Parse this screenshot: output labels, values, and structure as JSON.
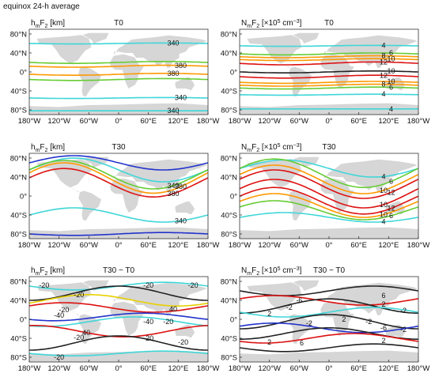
{
  "figure_title": "equinox  24-h average",
  "colors": {
    "land": "#d6d6d6",
    "frame": "#333333",
    "c_cyan": "#3fd6d8",
    "c_green": "#66cc33",
    "c_yellow": "#e8d000",
    "c_orange": "#ff9900",
    "c_red": "#dd1111",
    "c_blue": "#2233cc",
    "c_black": "#222222"
  },
  "chart_data": [
    {
      "type": "contour",
      "panel": "hmF2 T0",
      "ylabel_prefix": "h",
      "ylabel_sub1": "m",
      "ylabel_mid": "F",
      "ylabel_sub2": "2",
      "ylabel_unit": " [km]",
      "title": "T0",
      "xlim": [
        -180,
        180
      ],
      "ylim": [
        -90,
        90
      ],
      "x_ticks": [
        "180°W",
        "120°W",
        "60°W",
        "0°",
        "60°E",
        "120°E",
        "180°W"
      ],
      "y_ticks": [
        "80°N",
        "40°N",
        "0°",
        "40°S",
        "80°S"
      ],
      "contours": [
        {
          "level": "340",
          "color": "cyan",
          "lat": 60,
          "amp": 1,
          "phase": 0
        },
        {
          "level": "",
          "color": "green",
          "lat": 20,
          "amp": 2,
          "phase": 0
        },
        {
          "level": "380",
          "color": "orange",
          "lat": 12,
          "amp": 2,
          "phase": 0
        },
        {
          "level": "380",
          "color": "orange",
          "lat": -5,
          "amp": 2,
          "phase": 0
        },
        {
          "level": "",
          "color": "green",
          "lat": -16,
          "amp": 2,
          "phase": 0
        },
        {
          "level": "340",
          "color": "cyan",
          "lat": -55,
          "amp": 1,
          "phase": 0
        },
        {
          "level": "340",
          "color": "cyan",
          "lat": -82,
          "amp": 0,
          "phase": 0
        }
      ]
    },
    {
      "type": "contour",
      "panel": "NmF2 T0",
      "ylabel_prefix": "N",
      "ylabel_sub1": "m",
      "ylabel_mid": "F",
      "ylabel_sub2": "2",
      "ylabel_unit": " [×10",
      "ylabel_sup": "5",
      "ylabel_tail": " cm",
      "ylabel_sup2": "−3",
      "ylabel_end": "]",
      "title": "T0",
      "xlim": [
        -180,
        180
      ],
      "ylim": [
        -90,
        90
      ],
      "x_ticks": [
        "180°W",
        "120°W",
        "60°W",
        "0°",
        "60°E",
        "120°E",
        "180°W"
      ],
      "y_ticks": [
        "80°N",
        "40°N",
        "0°",
        "40°S",
        "80°S"
      ],
      "contours": [
        {
          "level": "4",
          "color": "cyan",
          "lat": 55,
          "amp": 1,
          "phase": 0
        },
        {
          "level": "6",
          "color": "green",
          "lat": 38,
          "amp": 2,
          "phase": 0
        },
        {
          "level": "8",
          "color": "orange",
          "lat": 32,
          "amp": 2,
          "phase": 0
        },
        {
          "level": "10",
          "color": "orange",
          "lat": 26,
          "amp": 2,
          "phase": 0
        },
        {
          "level": "12",
          "color": "red",
          "lat": 18,
          "amp": 3,
          "phase": 0
        },
        {
          "level": "10",
          "color": "black",
          "lat": 0,
          "amp": 2,
          "phase": 0
        },
        {
          "level": "12",
          "color": "red",
          "lat": -10,
          "amp": 3,
          "phase": 0
        },
        {
          "level": "10",
          "color": "orange",
          "lat": -22,
          "amp": 2,
          "phase": 0
        },
        {
          "level": "8",
          "color": "orange",
          "lat": -28,
          "amp": 2,
          "phase": 0
        },
        {
          "level": "6",
          "color": "green",
          "lat": -34,
          "amp": 2,
          "phase": 0
        },
        {
          "level": "4",
          "color": "cyan",
          "lat": -48,
          "amp": 1,
          "phase": 0
        },
        {
          "level": "4",
          "color": "cyan",
          "lat": -78,
          "amp": 0,
          "phase": 0
        }
      ]
    },
    {
      "type": "contour",
      "panel": "hmF2 T30",
      "ylabel_prefix": "h",
      "ylabel_sub1": "m",
      "ylabel_mid": "F",
      "ylabel_sub2": "2",
      "ylabel_unit": " [km]",
      "title": "T30",
      "xlim": [
        -180,
        180
      ],
      "ylim": [
        -90,
        90
      ],
      "x_ticks": [
        "180°W",
        "120°W",
        "60°W",
        "0°",
        "60°E",
        "120°E",
        "180°W"
      ],
      "y_ticks": [
        "80°N",
        "40°N",
        "0°",
        "40°S",
        "80°S"
      ],
      "contours": [
        {
          "level": "",
          "color": "blue",
          "lat": 70,
          "amp": 15,
          "phase": 180
        },
        {
          "level": "",
          "color": "cyan",
          "lat": 55,
          "amp": 25,
          "phase": 180
        },
        {
          "level": "340",
          "color": "green",
          "lat": 45,
          "amp": 30,
          "phase": 200
        },
        {
          "level": "380",
          "color": "orange",
          "lat": 38,
          "amp": 32,
          "phase": 200
        },
        {
          "level": "380",
          "color": "red",
          "lat": 28,
          "amp": 30,
          "phase": 200
        },
        {
          "level": "340",
          "color": "cyan",
          "lat": -40,
          "amp": 15,
          "phase": 180
        },
        {
          "level": "",
          "color": "blue",
          "lat": -80,
          "amp": 3,
          "phase": 0
        }
      ]
    },
    {
      "type": "contour",
      "panel": "NmF2 T30",
      "ylabel_prefix": "N",
      "ylabel_sub1": "m",
      "ylabel_mid": "F",
      "ylabel_sub2": "2",
      "ylabel_unit": " [×10",
      "ylabel_sup": "5",
      "ylabel_tail": " cm",
      "ylabel_sup2": "−3",
      "ylabel_end": "]",
      "title": "T30",
      "xlim": [
        -180,
        180
      ],
      "ylim": [
        -90,
        90
      ],
      "x_ticks": [
        "180°W",
        "120°W",
        "60°W",
        "0°",
        "60°E",
        "120°E",
        "180°W"
      ],
      "y_ticks": [
        "80°N",
        "40°N",
        "0°",
        "40°S",
        "80°S"
      ],
      "contours": [
        {
          "level": "4",
          "color": "cyan",
          "lat": 58,
          "amp": 18,
          "phase": 180
        },
        {
          "level": "6",
          "color": "green",
          "lat": 48,
          "amp": 30,
          "phase": 200
        },
        {
          "level": "10",
          "color": "orange",
          "lat": 35,
          "amp": 30,
          "phase": 200
        },
        {
          "level": "12",
          "color": "red",
          "lat": 25,
          "amp": 30,
          "phase": 200
        },
        {
          "level": "10",
          "color": "red",
          "lat": 5,
          "amp": 30,
          "phase": 200
        },
        {
          "level": "12",
          "color": "red",
          "lat": -10,
          "amp": 28,
          "phase": 200
        },
        {
          "level": "10",
          "color": "orange",
          "lat": -20,
          "amp": 25,
          "phase": 200
        },
        {
          "level": "6",
          "color": "green",
          "lat": -30,
          "amp": 20,
          "phase": 200
        },
        {
          "level": "4",
          "color": "cyan",
          "lat": -45,
          "amp": 10,
          "phase": 180
        }
      ]
    },
    {
      "type": "contour",
      "panel": "hmF2 T30 - T0",
      "ylabel_prefix": "h",
      "ylabel_sub1": "m",
      "ylabel_mid": "F",
      "ylabel_sub2": "2",
      "ylabel_unit": " [km]",
      "title": "T30 − T0",
      "xlim": [
        -180,
        180
      ],
      "ylim": [
        -90,
        90
      ],
      "x_ticks": [
        "180°W",
        "120°W",
        "60°W",
        "0°",
        "60°E",
        "120°E",
        "180°W"
      ],
      "y_ticks": [
        "80°N",
        "40°N",
        "0°",
        "40°S",
        "80°S"
      ],
      "contours": [
        {
          "level": "-20",
          "color": "cyan",
          "lat": 70,
          "amp": 8,
          "phase": 0
        },
        {
          "level": "-20",
          "color": "black",
          "lat": 55,
          "amp": 15,
          "phase": 90
        },
        {
          "level": "",
          "color": "yellow",
          "lat": 40,
          "amp": 12,
          "phase": 150
        },
        {
          "level": "40",
          "color": "red",
          "lat": 25,
          "amp": 10,
          "phase": 200
        },
        {
          "level": "-40",
          "color": "blue",
          "lat": 5,
          "amp": 8,
          "phase": 40
        },
        {
          "level": "-20",
          "color": "cyan",
          "lat": -5,
          "amp": 10,
          "phase": 60
        },
        {
          "level": "40",
          "color": "red",
          "lat": -25,
          "amp": 12,
          "phase": 260
        },
        {
          "level": "-20",
          "color": "black",
          "lat": -50,
          "amp": 15,
          "phase": 90
        },
        {
          "level": "-20",
          "color": "cyan",
          "lat": -72,
          "amp": 5,
          "phase": 0
        }
      ],
      "labels": [
        {
          "text": "-20",
          "lon": -150,
          "lat": 72
        },
        {
          "text": "-20",
          "lon": -80,
          "lat": 52
        },
        {
          "text": "-20",
          "lon": 60,
          "lat": 72
        },
        {
          "text": "-20",
          "lon": 150,
          "lat": 72
        },
        {
          "text": "40",
          "lon": 110,
          "lat": 22
        },
        {
          "text": "-20",
          "lon": -110,
          "lat": 20
        },
        {
          "text": "-40",
          "lon": -120,
          "lat": 8
        },
        {
          "text": "-40",
          "lon": 60,
          "lat": -5
        },
        {
          "text": "-20",
          "lon": 100,
          "lat": -5
        },
        {
          "text": "40",
          "lon": -65,
          "lat": -28
        },
        {
          "text": "-20",
          "lon": -80,
          "lat": -38
        },
        {
          "text": "-20",
          "lon": 60,
          "lat": -40
        },
        {
          "text": "-20",
          "lon": 130,
          "lat": -48
        },
        {
          "text": "-20",
          "lon": -120,
          "lat": -80
        }
      ]
    },
    {
      "type": "contour",
      "panel": "NmF2 T30 - T0",
      "ylabel_prefix": "N",
      "ylabel_sub1": "m",
      "ylabel_mid": "F",
      "ylabel_sub2": "2",
      "ylabel_unit": " [×10",
      "ylabel_sup": "5",
      "ylabel_tail": " cm",
      "ylabel_sup2": "−3",
      "ylabel_end": "]",
      "title": "T30 − T0",
      "xlim": [
        -180,
        180
      ],
      "ylim": [
        -90,
        90
      ],
      "x_ticks": [
        "180°W",
        "120°W",
        "60°W",
        "0°",
        "60°E",
        "120°E",
        "180°W"
      ],
      "y_ticks": [
        "80°N",
        "40°N",
        "0°",
        "40°S",
        "80°S"
      ],
      "contours": [
        {
          "level": "2",
          "color": "black",
          "lat": 60,
          "amp": 10,
          "phase": 0
        },
        {
          "level": "6",
          "color": "red",
          "lat": 40,
          "amp": 10,
          "phase": 200
        },
        {
          "level": "2",
          "color": "black",
          "lat": 28,
          "amp": 15,
          "phase": 90
        },
        {
          "level": "-2",
          "color": "cyan",
          "lat": 15,
          "amp": 10,
          "phase": 0
        },
        {
          "level": "2",
          "color": "black",
          "lat": -5,
          "amp": 15,
          "phase": 90
        },
        {
          "level": "-6",
          "color": "blue",
          "lat": -18,
          "amp": 10,
          "phase": 200
        },
        {
          "level": "2",
          "color": "black",
          "lat": -30,
          "amp": 12,
          "phase": 90
        },
        {
          "level": "6",
          "color": "red",
          "lat": -40,
          "amp": 10,
          "phase": 40
        },
        {
          "level": "2",
          "color": "black",
          "lat": -60,
          "amp": 8,
          "phase": 0
        }
      ],
      "labels": [
        {
          "text": "6",
          "lon": 110,
          "lat": 50
        },
        {
          "text": "-6",
          "lon": -60,
          "lat": 40
        },
        {
          "text": "2",
          "lon": 110,
          "lat": 32
        },
        {
          "text": "-2",
          "lon": -80,
          "lat": 25
        },
        {
          "text": "-2",
          "lon": 150,
          "lat": 18
        },
        {
          "text": "2",
          "lon": -120,
          "lat": 12
        },
        {
          "text": "2",
          "lon": 30,
          "lat": 0
        },
        {
          "text": "-2",
          "lon": 80,
          "lat": -5
        },
        {
          "text": "-2",
          "lon": -40,
          "lat": -8
        },
        {
          "text": "-6",
          "lon": 110,
          "lat": -18
        },
        {
          "text": "-2",
          "lon": 150,
          "lat": -22
        },
        {
          "text": "2",
          "lon": -120,
          "lat": -48
        },
        {
          "text": "6",
          "lon": -55,
          "lat": -50
        },
        {
          "text": "2",
          "lon": 110,
          "lat": -45
        }
      ]
    }
  ]
}
